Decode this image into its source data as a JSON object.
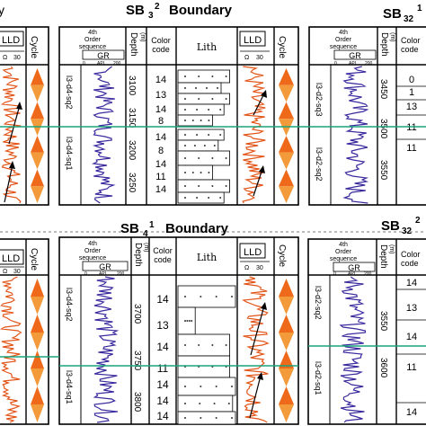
{
  "top_row": {
    "left_partial_title": "y",
    "center_title_prefix": "SB",
    "center_title_sub": "3",
    "center_title_sup": "2",
    "center_title_word": "Boundary",
    "right_partial_title_prefix": "SB",
    "right_partial_title_sub": "32",
    "right_partial_title_sup": "1"
  },
  "bottom_row": {
    "center_title_prefix": "SB",
    "center_title_sub": "4",
    "center_title_sup": "1",
    "center_title_word": "Boundary",
    "right_partial_title_prefix": "SB",
    "right_partial_title_sub": "32",
    "right_partial_title_sup": "2"
  },
  "headers": {
    "lld": "LLD",
    "lld_scale_unit": "Ω",
    "lld_scale_max": "30",
    "cycle": "Cycle",
    "fourth_order_line1": "4th",
    "fourth_order_line2": "Order",
    "fourth_order_line3": "sequence",
    "gr": "GR",
    "gr_scale_min": "0",
    "gr_scale_unit": "API",
    "gr_scale_max": "200",
    "depth": "Depth",
    "depth_unit": "(m)",
    "color_code_line1": "Color",
    "color_code_line2": "code",
    "lith": "Lith"
  },
  "panels": {
    "top_center": {
      "sequences": [
        "l3-d4-sq2",
        "l3-d4-sq1"
      ],
      "depths": [
        "3100",
        "3150",
        "3200",
        "3250"
      ],
      "color_codes": [
        "14",
        "13",
        "14",
        "8",
        "14",
        "8",
        "14",
        "11",
        "14"
      ]
    },
    "top_left_partial": {
      "sequences": [
        "l3-d4-sq2",
        "l3-d4-sq1"
      ]
    },
    "top_right_partial": {
      "sequences": [
        "l3-d2-sq3",
        "l3-d2-sq2"
      ],
      "depths": [
        "3450",
        "3500",
        "3550"
      ],
      "color_codes": [
        "0",
        "1",
        "13",
        "11",
        "11"
      ]
    },
    "bottom_center": {
      "sequences": [
        "l3-d4-sq2",
        "l3-d4-sq1"
      ],
      "depths": [
        "3700",
        "3750",
        "3800"
      ],
      "color_codes": [
        "14",
        "13",
        "14",
        "11",
        "14",
        "14",
        "14"
      ]
    },
    "bottom_right_partial": {
      "sequences": [
        "l3-d2-sq2",
        "l3-d2-sq1"
      ],
      "depths": [
        "3550",
        "3600"
      ],
      "color_codes": [
        "14",
        "13",
        "14",
        "11",
        "14"
      ]
    }
  },
  "colors": {
    "boundary_line": "#1aa37a",
    "gr_curve": "#3a2a9e",
    "lld_curve": "#e2561a",
    "cycle_fill": "#ee6a1a",
    "cycle_fill_light": "#f8c070",
    "lith_dark": "#333333"
  }
}
